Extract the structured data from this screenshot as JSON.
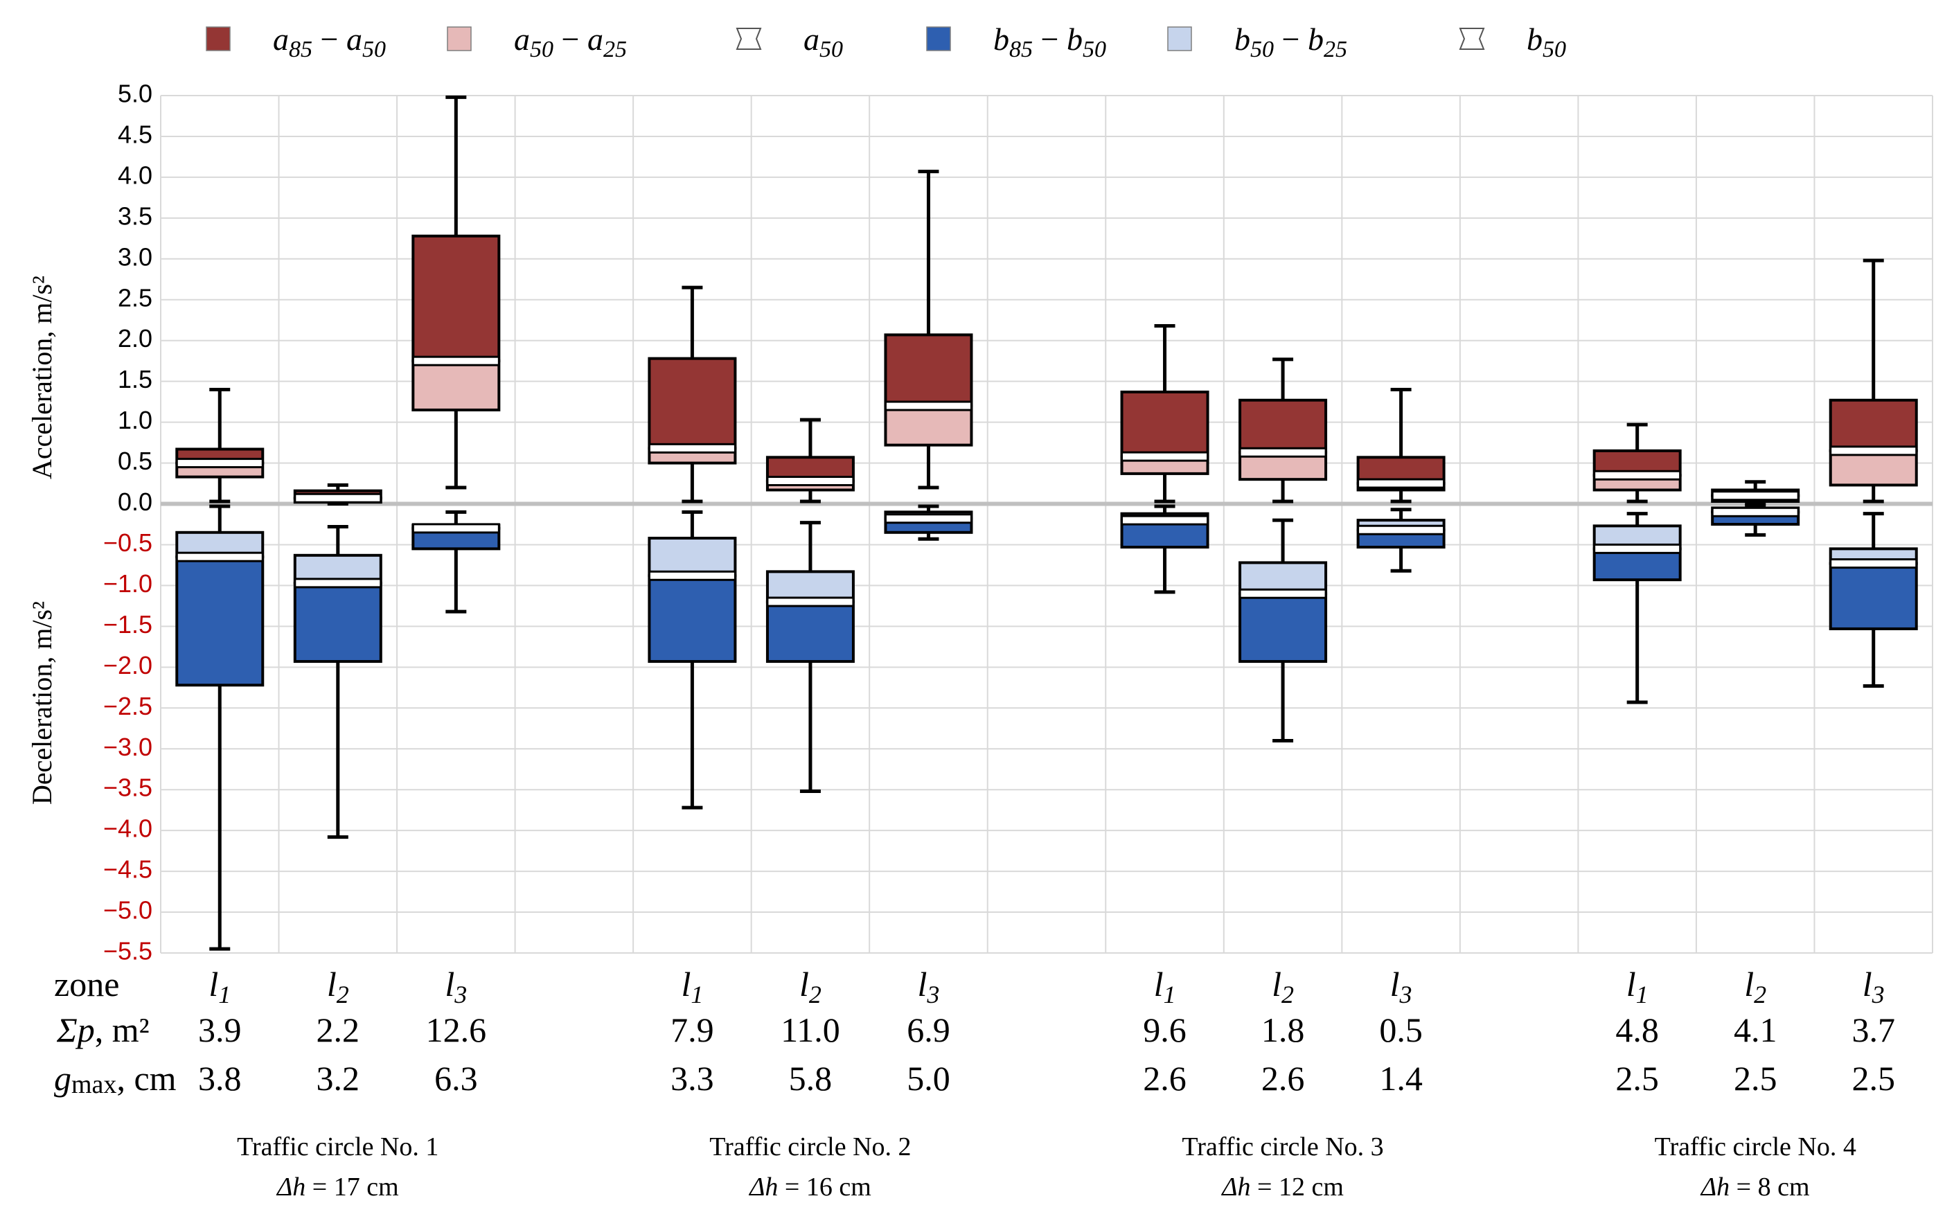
{
  "chart_data": {
    "type": "box",
    "yaxis": {
      "min": -5.5,
      "max": 5.0,
      "step": 0.5,
      "label_positive": "Acceleration, m/s²",
      "label_negative": "Deceleration, m/s²",
      "positive_label_color": "#000000",
      "negative_label_color": "#c00000",
      "ticks": [
        "5.0",
        "4.5",
        "4.0",
        "3.5",
        "3.0",
        "2.5",
        "2.0",
        "1.5",
        "1.0",
        "0.5",
        "0.0",
        "−0.5",
        "−1.0",
        "−1.5",
        "−2.0",
        "−2.5",
        "−3.0",
        "−3.5",
        "−4.0",
        "−4.5",
        "−5.0",
        "−5.5"
      ]
    },
    "legend": [
      {
        "key": "a85_a50",
        "main": "a",
        "sub1": "85",
        "minus": " − ",
        "main2": "a",
        "sub2": "50",
        "color": "#943634",
        "type": "box"
      },
      {
        "key": "a50_a25",
        "main": "a",
        "sub1": "50",
        "minus": " − ",
        "main2": "a",
        "sub2": "25",
        "color": "#e6b9b8",
        "type": "box"
      },
      {
        "key": "a50",
        "main": "a",
        "sub1": "50",
        "minus": "",
        "main2": "",
        "sub2": "",
        "color": "#ffffff",
        "type": "median"
      },
      {
        "key": "b85_b50",
        "main": "b",
        "sub1": "85",
        "minus": " − ",
        "main2": "b",
        "sub2": "50",
        "color": "#2e5fb0",
        "type": "box"
      },
      {
        "key": "b50_b25",
        "main": "b",
        "sub1": "50",
        "minus": " − ",
        "main2": "b",
        "sub2": "25",
        "color": "#c6d4ec",
        "type": "box"
      },
      {
        "key": "b50",
        "main": "b",
        "sub1": "50",
        "minus": "",
        "main2": "",
        "sub2": "",
        "color": "#ffffff",
        "type": "median"
      }
    ],
    "colors": {
      "acc_upper": "#943634",
      "acc_lower": "#e6b9b8",
      "dec_upper": "#c6d4ec",
      "dec_lower": "#2e5fb0"
    },
    "row_labels": {
      "zone": "zone",
      "sum_p_symbol": "Σp",
      "sum_p_unit": ", m²",
      "gmax_symbol": "g",
      "gmax_sub": "max",
      "gmax_unit": ", cm"
    },
    "groups": [
      {
        "name": "Traffic circle No. 1",
        "dh_symbol": "Δh",
        "dh_value": " = 17 cm",
        "zones": [
          {
            "zone": "l",
            "zone_sub": "1",
            "sum_p": "3.9",
            "gmax": "3.8",
            "acc": {
              "whisker_max": 1.4,
              "p85": 0.67,
              "p50": 0.5,
              "p25": 0.33,
              "whisker_min": 0.03
            },
            "dec": {
              "whisker_max": -0.03,
              "p25": -0.35,
              "p50": -0.65,
              "p85": -0.72,
              "whisker_min": -5.45,
              "p85_box": -2.22
            }
          },
          {
            "zone": "l",
            "zone_sub": "2",
            "sum_p": "2.2",
            "gmax": "3.2",
            "acc": {
              "whisker_max": 0.23,
              "p85": 0.16,
              "p50": 0.07,
              "p25": 0.02,
              "whisker_min": 0.0
            },
            "dec": {
              "whisker_max": -0.28,
              "p25": -0.63,
              "p50": -0.97,
              "p85_box": -1.93,
              "whisker_min": -4.08
            }
          },
          {
            "zone": "l",
            "zone_sub": "3",
            "sum_p": "12.6",
            "gmax": "6.3",
            "acc": {
              "whisker_max": 4.98,
              "p85": 3.28,
              "p50": 1.75,
              "p25": 1.15,
              "whisker_min": 0.2
            },
            "dec": {
              "whisker_max": -0.1,
              "p25": -0.26,
              "p50": -0.3,
              "p85_box": -0.55,
              "whisker_min": -1.32
            }
          }
        ]
      },
      {
        "name": "Traffic circle No. 2",
        "dh_symbol": "Δh",
        "dh_value": " = 16 cm",
        "zones": [
          {
            "zone": "l",
            "zone_sub": "1",
            "sum_p": "7.9",
            "gmax": "3.3",
            "acc": {
              "whisker_max": 2.65,
              "p85": 1.78,
              "p50": 0.68,
              "p25": 0.5,
              "whisker_min": 0.03
            },
            "dec": {
              "whisker_max": -0.1,
              "p25": -0.42,
              "p50": -0.88,
              "p85_box": -1.93,
              "whisker_min": -3.72
            }
          },
          {
            "zone": "l",
            "zone_sub": "2",
            "sum_p": "11.0",
            "gmax": "5.8",
            "acc": {
              "whisker_max": 1.03,
              "p85": 0.57,
              "p50": 0.28,
              "p25": 0.17,
              "whisker_min": 0.03
            },
            "dec": {
              "whisker_max": -0.23,
              "p25": -0.83,
              "p50": -1.2,
              "p85_box": -1.93,
              "whisker_min": -3.52
            }
          },
          {
            "zone": "l",
            "zone_sub": "3",
            "sum_p": "6.9",
            "gmax": "5.0",
            "acc": {
              "whisker_max": 4.07,
              "p85": 2.07,
              "p50": 1.2,
              "p25": 0.72,
              "whisker_min": 0.2
            },
            "dec": {
              "whisker_max": -0.03,
              "p25": -0.1,
              "p50": -0.18,
              "p85_box": -0.35,
              "whisker_min": -0.43
            }
          }
        ]
      },
      {
        "name": "Traffic circle No. 3",
        "dh_symbol": "Δh",
        "dh_value": " = 12 cm",
        "zones": [
          {
            "zone": "l",
            "zone_sub": "1",
            "sum_p": "9.6",
            "gmax": "2.6",
            "acc": {
              "whisker_max": 2.18,
              "p85": 1.37,
              "p50": 0.58,
              "p25": 0.37,
              "whisker_min": 0.03
            },
            "dec": {
              "whisker_max": -0.03,
              "p25": -0.12,
              "p50": -0.2,
              "p85_box": -0.53,
              "whisker_min": -1.08
            }
          },
          {
            "zone": "l",
            "zone_sub": "2",
            "sum_p": "1.8",
            "gmax": "2.6",
            "acc": {
              "whisker_max": 1.77,
              "p85": 1.27,
              "p50": 0.63,
              "p25": 0.3,
              "whisker_min": 0.03
            },
            "dec": {
              "whisker_max": -0.2,
              "p25": -0.72,
              "p50": -1.1,
              "p85_box": -1.93,
              "whisker_min": -2.9
            }
          },
          {
            "zone": "l",
            "zone_sub": "3",
            "sum_p": "0.5",
            "gmax": "1.4",
            "acc": {
              "whisker_max": 1.4,
              "p85": 0.57,
              "p50": 0.25,
              "p25": 0.17,
              "whisker_min": 0.03
            },
            "dec": {
              "whisker_max": -0.07,
              "p25": -0.2,
              "p50": -0.32,
              "p85_box": -0.53,
              "whisker_min": -0.82
            }
          }
        ]
      },
      {
        "name": "Traffic circle No. 4",
        "dh_symbol": "Δh",
        "dh_value": " = 8 cm",
        "zones": [
          {
            "zone": "l",
            "zone_sub": "1",
            "sum_p": "4.8",
            "gmax": "2.5",
            "acc": {
              "whisker_max": 0.97,
              "p85": 0.65,
              "p50": 0.35,
              "p25": 0.17,
              "whisker_min": 0.03
            },
            "dec": {
              "whisker_max": -0.12,
              "p25": -0.27,
              "p50": -0.55,
              "p85_box": -0.93,
              "whisker_min": -2.43
            }
          },
          {
            "zone": "l",
            "zone_sub": "2",
            "sum_p": "4.1",
            "gmax": "2.5",
            "acc": {
              "whisker_max": 0.27,
              "p85": 0.17,
              "p50": 0.1,
              "p25": 0.03,
              "whisker_min": 0.0
            },
            "dec": {
              "whisker_max": -0.02,
              "p25": -0.05,
              "p50": -0.1,
              "p85_box": -0.25,
              "whisker_min": -0.38
            }
          },
          {
            "zone": "l",
            "zone_sub": "3",
            "sum_p": "3.7",
            "gmax": "2.5",
            "acc": {
              "whisker_max": 2.98,
              "p85": 1.27,
              "p50": 0.65,
              "p25": 0.23,
              "whisker_min": 0.03
            },
            "dec": {
              "whisker_max": -0.12,
              "p25": -0.55,
              "p50": -0.73,
              "p85_box": -1.53,
              "whisker_min": -2.23
            }
          }
        ]
      }
    ]
  }
}
